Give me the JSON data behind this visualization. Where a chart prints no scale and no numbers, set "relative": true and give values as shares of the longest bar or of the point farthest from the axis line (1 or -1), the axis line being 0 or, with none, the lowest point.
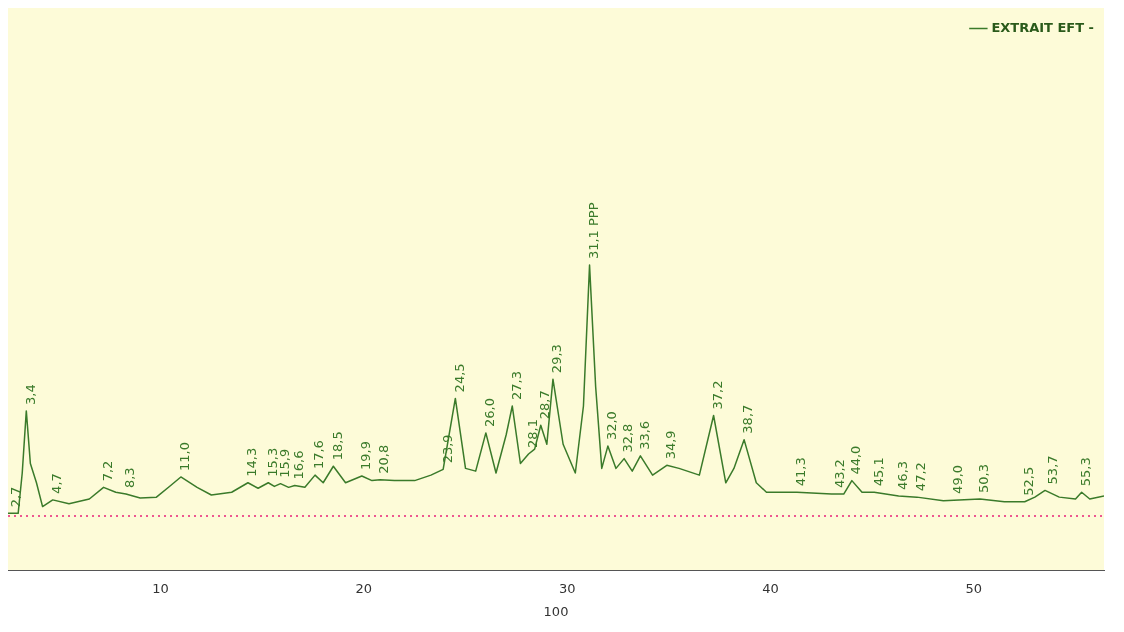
{
  "chart_data": {
    "type": "line",
    "relative": true,
    "xlabel": "100",
    "legend": "top right",
    "grid": false,
    "marker": "none",
    "line_style": "solid",
    "xlim": [
      2.5,
      56.4
    ],
    "xticks": [
      10,
      20,
      30,
      40,
      50
    ],
    "series": [
      {
        "name": "EXTRAIT EFT -",
        "color": "#3a7a2a",
        "x": [
          2.5,
          3.0,
          3.2,
          3.4,
          3.6,
          3.9,
          4.2,
          4.7,
          5.5,
          6.5,
          7.2,
          7.8,
          8.3,
          9.0,
          9.8,
          10.5,
          11.0,
          11.8,
          12.5,
          13.5,
          14.3,
          14.8,
          15.3,
          15.6,
          15.9,
          16.3,
          16.6,
          17.1,
          17.6,
          18.0,
          18.5,
          19.1,
          19.9,
          20.4,
          20.8,
          21.5,
          22.5,
          23.3,
          23.9,
          24.5,
          25.0,
          25.5,
          26.0,
          26.5,
          27.0,
          27.3,
          27.7,
          28.1,
          28.4,
          28.7,
          29.0,
          29.3,
          29.8,
          30.4,
          30.8,
          31.1,
          31.4,
          31.7,
          32.0,
          32.4,
          32.8,
          33.2,
          33.6,
          34.2,
          34.9,
          35.5,
          36.5,
          37.2,
          37.8,
          38.2,
          38.7,
          39.3,
          39.8,
          41.3,
          43.0,
          43.6,
          44.0,
          44.5,
          45.1,
          46.3,
          47.2,
          48.5,
          50.3,
          51.5,
          52.5,
          53.0,
          53.5,
          54.2,
          55.0,
          55.3,
          55.7,
          56.4
        ],
        "values": [
          0.188,
          0.188,
          0.32,
          0.523,
          0.351,
          0.288,
          0.21,
          0.232,
          0.219,
          0.235,
          0.273,
          0.257,
          0.251,
          0.238,
          0.241,
          0.279,
          0.307,
          0.273,
          0.248,
          0.257,
          0.288,
          0.27,
          0.288,
          0.276,
          0.285,
          0.273,
          0.279,
          0.273,
          0.313,
          0.288,
          0.342,
          0.288,
          0.31,
          0.295,
          0.298,
          0.295,
          0.295,
          0.313,
          0.332,
          0.564,
          0.335,
          0.326,
          0.451,
          0.32,
          0.445,
          0.539,
          0.351,
          0.382,
          0.398,
          0.476,
          0.414,
          0.627,
          0.414,
          0.32,
          0.539,
          1,
          0.602,
          0.335,
          0.408,
          0.335,
          0.367,
          0.326,
          0.376,
          0.313,
          0.345,
          0.335,
          0.313,
          0.508,
          0.288,
          0.335,
          0.429,
          0.288,
          0.257,
          0.257,
          0.251,
          0.251,
          0.295,
          0.257,
          0.257,
          0.245,
          0.241,
          0.229,
          0.235,
          0.226,
          0.226,
          0.241,
          0.263,
          0.241,
          0.235,
          0.257,
          0.235,
          0.245
        ]
      }
    ],
    "ref_lines": [
      {
        "axis": "y",
        "value": 0.179,
        "color": "#e8207a",
        "line_style": "dotted"
      }
    ],
    "annotations": [
      {
        "text": "2,7",
        "x": 2.7,
        "y": 0.188
      },
      {
        "text": "3,4",
        "x": 3.4,
        "y": 0.523
      },
      {
        "text": "4,7",
        "x": 4.7,
        "y": 0.232
      },
      {
        "text": "7,2",
        "x": 7.2,
        "y": 0.273
      },
      {
        "text": "8,3",
        "x": 8.3,
        "y": 0.251
      },
      {
        "text": "11,0",
        "x": 11.0,
        "y": 0.307
      },
      {
        "text": "14,3",
        "x": 14.3,
        "y": 0.288
      },
      {
        "text": "15,3",
        "x": 15.3,
        "y": 0.288
      },
      {
        "text": "15,9",
        "x": 15.9,
        "y": 0.285
      },
      {
        "text": "16,6",
        "x": 16.6,
        "y": 0.279
      },
      {
        "text": "17,6",
        "x": 17.6,
        "y": 0.313
      },
      {
        "text": "18,5",
        "x": 18.5,
        "y": 0.342
      },
      {
        "text": "19,9",
        "x": 19.9,
        "y": 0.31
      },
      {
        "text": "20,8",
        "x": 20.8,
        "y": 0.298
      },
      {
        "text": "23,9",
        "x": 23.9,
        "y": 0.332
      },
      {
        "text": "24,5",
        "x": 24.5,
        "y": 0.564
      },
      {
        "text": "26,0",
        "x": 26.0,
        "y": 0.451
      },
      {
        "text": "27,3",
        "x": 27.3,
        "y": 0.539
      },
      {
        "text": "28,1",
        "x": 28.1,
        "y": 0.382
      },
      {
        "text": "28,7",
        "x": 28.7,
        "y": 0.476
      },
      {
        "text": "29,3",
        "x": 29.3,
        "y": 0.627
      },
      {
        "text": "31,1 PPP",
        "x": 31.1,
        "y": 1
      },
      {
        "text": "32,0",
        "x": 32.0,
        "y": 0.408
      },
      {
        "text": "32,8",
        "x": 32.8,
        "y": 0.367
      },
      {
        "text": "33,6",
        "x": 33.6,
        "y": 0.376
      },
      {
        "text": "34,9",
        "x": 34.9,
        "y": 0.345
      },
      {
        "text": "37,2",
        "x": 37.2,
        "y": 0.508
      },
      {
        "text": "38,7",
        "x": 38.7,
        "y": 0.429
      },
      {
        "text": "41,3",
        "x": 41.3,
        "y": 0.257
      },
      {
        "text": "43,2",
        "x": 43.2,
        "y": 0.251
      },
      {
        "text": "44,0",
        "x": 44.0,
        "y": 0.295
      },
      {
        "text": "45,1",
        "x": 45.1,
        "y": 0.257
      },
      {
        "text": "46,3",
        "x": 46.3,
        "y": 0.245
      },
      {
        "text": "47,2",
        "x": 47.2,
        "y": 0.241
      },
      {
        "text": "49,0",
        "x": 49.0,
        "y": 0.232
      },
      {
        "text": "50,3",
        "x": 50.3,
        "y": 0.235
      },
      {
        "text": "52,5",
        "x": 52.5,
        "y": 0.226
      },
      {
        "text": "53,7",
        "x": 53.7,
        "y": 0.263
      },
      {
        "text": "55,3",
        "x": 55.3,
        "y": 0.257
      }
    ]
  }
}
